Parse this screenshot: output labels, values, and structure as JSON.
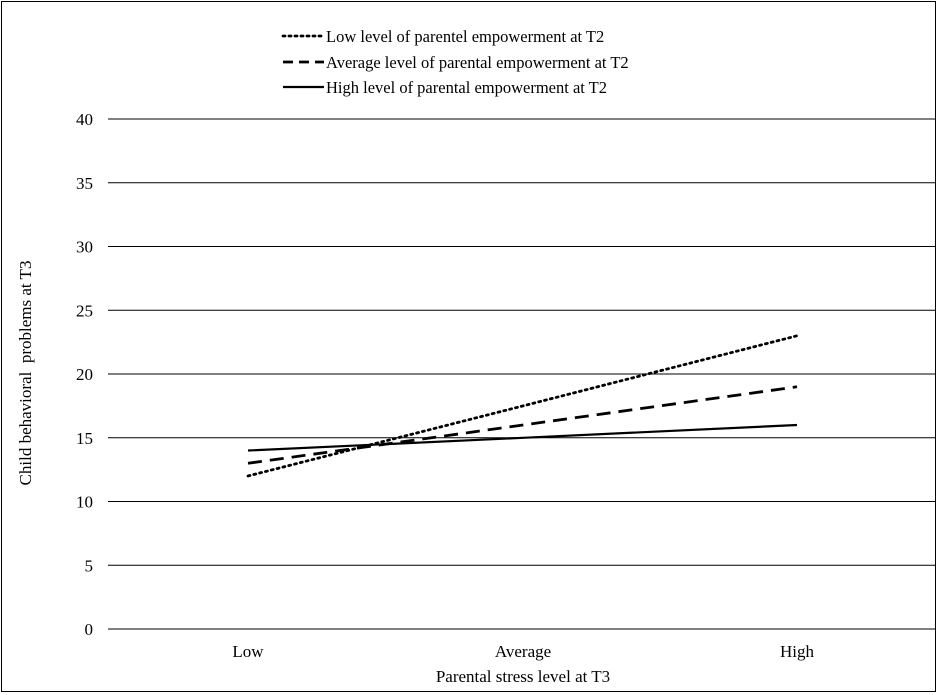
{
  "chart_data": {
    "type": "line",
    "categories": [
      "Low",
      "Average",
      "High"
    ],
    "series": [
      {
        "name": "Low level of parentel empowerment at T2",
        "style": "dotted",
        "values": [
          12,
          17.5,
          23
        ]
      },
      {
        "name": "Average level of parental empowerment at T2",
        "style": "dashed",
        "values": [
          13,
          16,
          19
        ]
      },
      {
        "name": "High level of parental empowerment at T2",
        "style": "solid",
        "values": [
          14,
          15,
          16
        ]
      }
    ],
    "xlabel": "Parental stress level at T3",
    "ylabel": "Child behavioral  problems at T3",
    "ylim": [
      0,
      40
    ],
    "yticks": [
      0,
      5,
      10,
      15,
      20,
      25,
      30,
      35,
      40
    ],
    "grid": true,
    "legend_position": "top",
    "colors": {
      "line": "#000000",
      "grid": "#000000"
    }
  }
}
